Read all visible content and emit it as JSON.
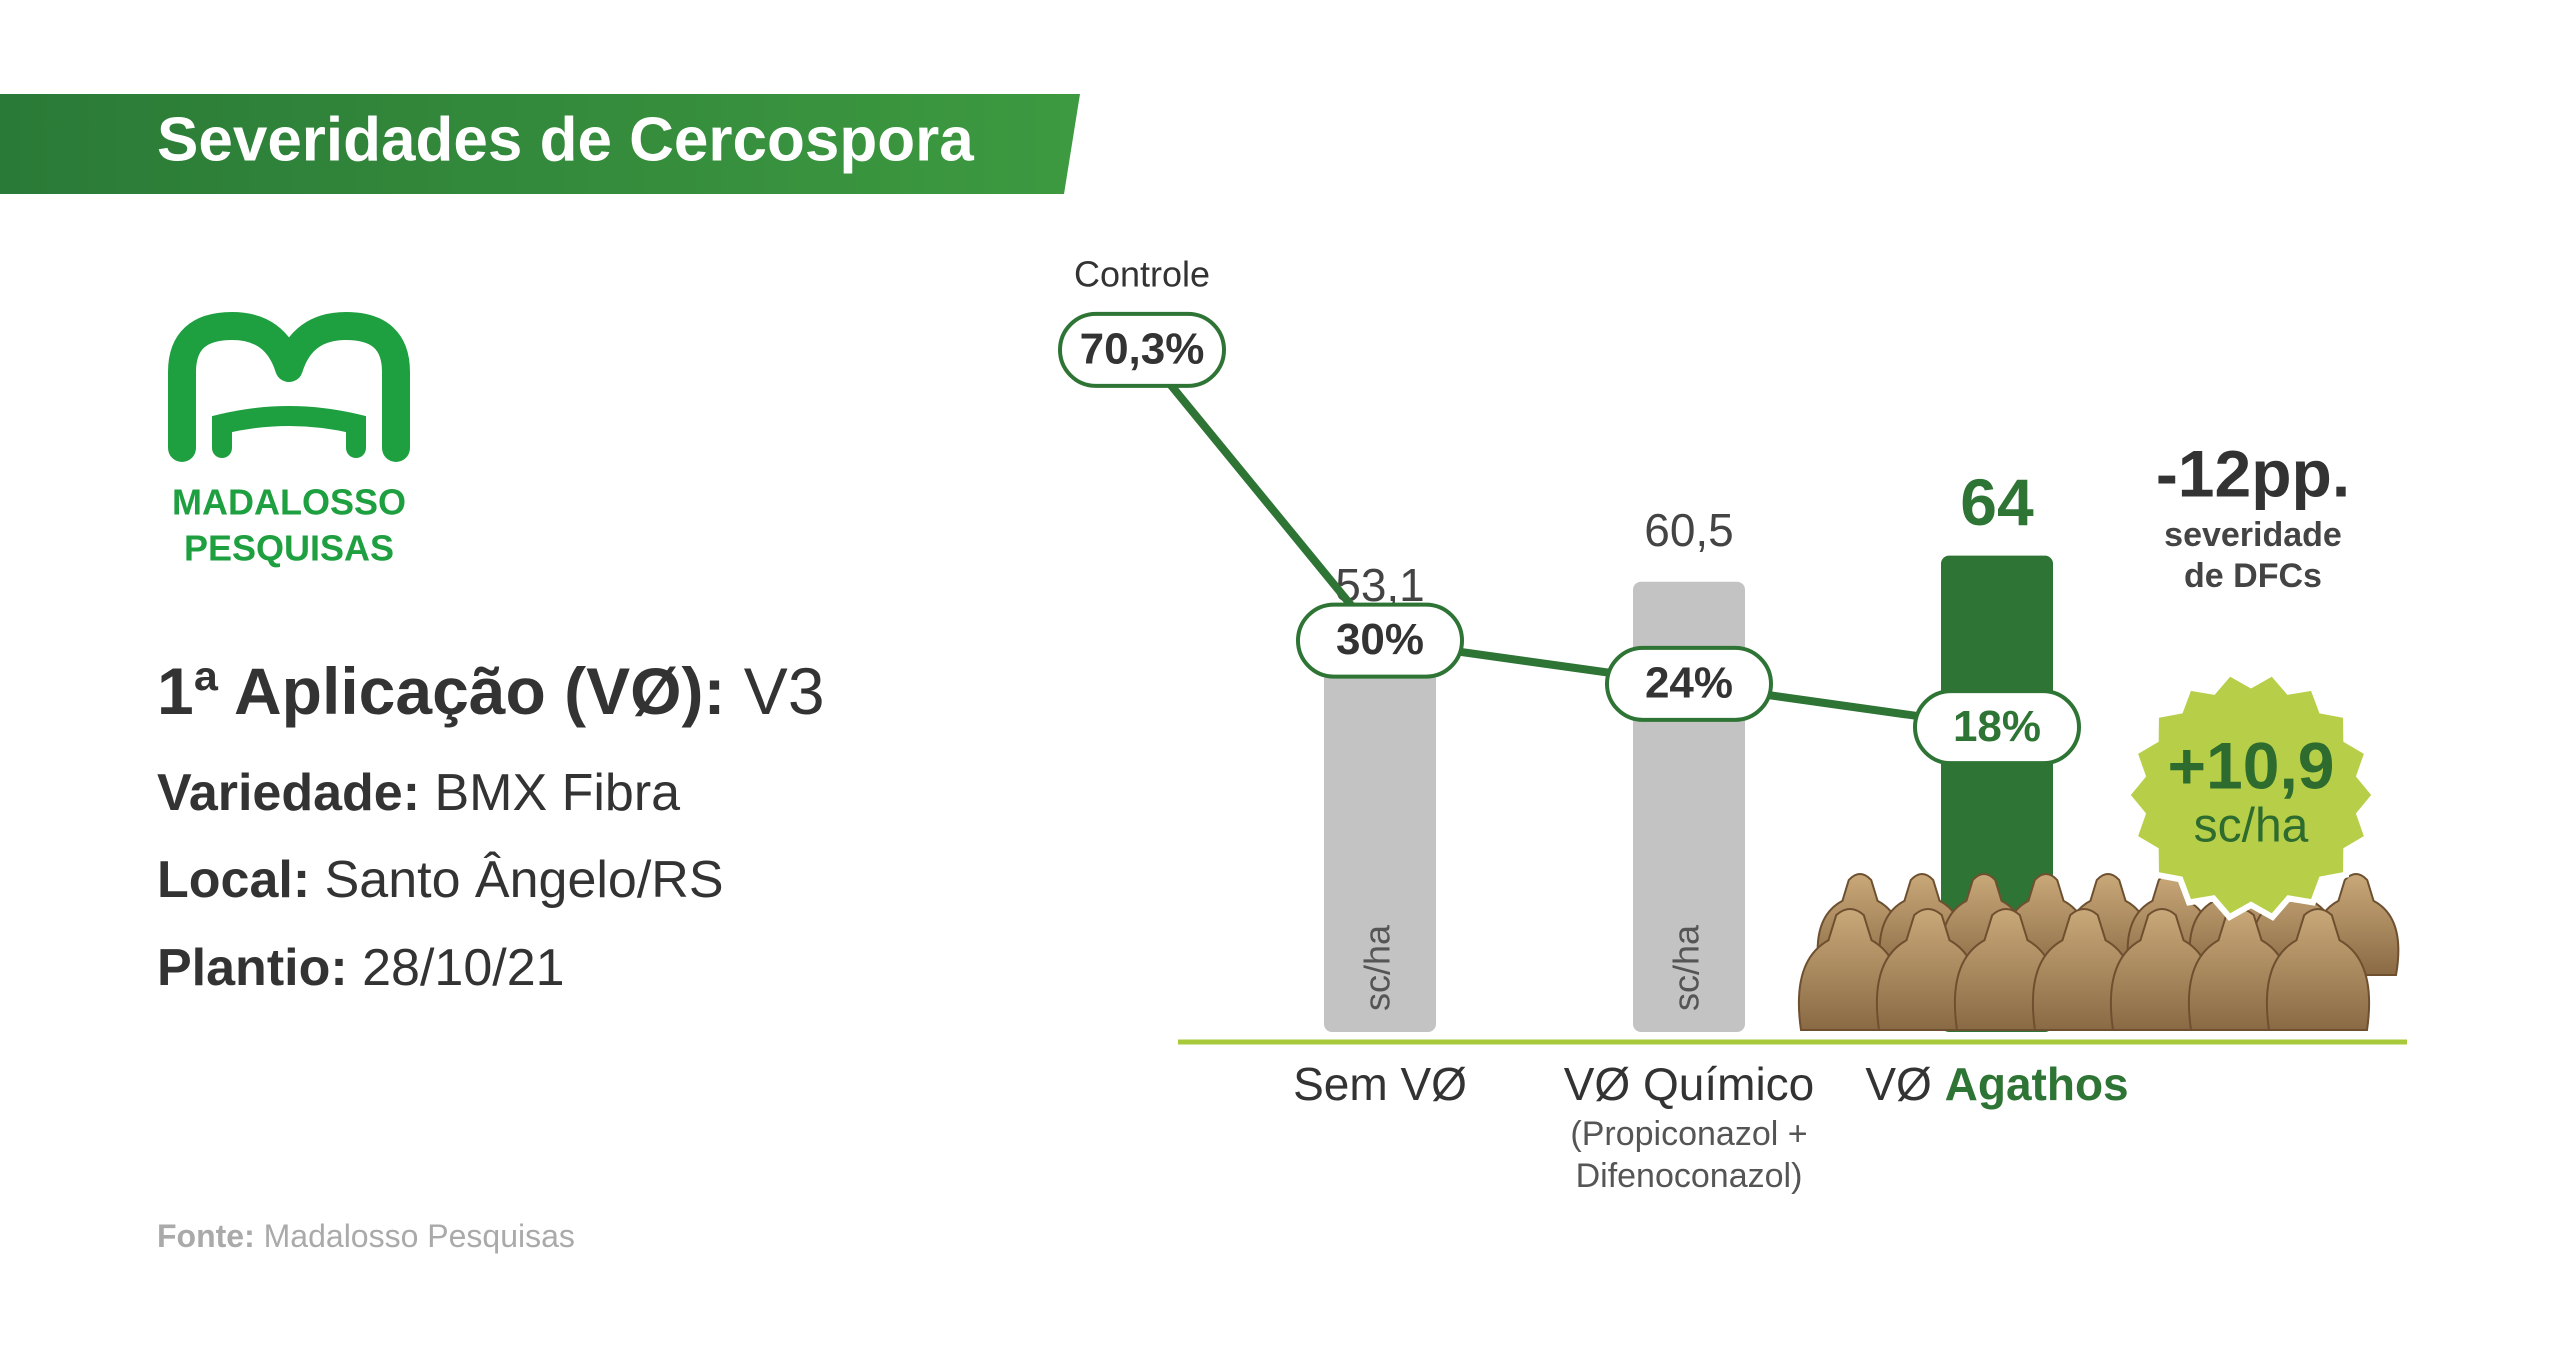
{
  "header": {
    "title": "Severidades de Cercospora"
  },
  "logo": {
    "lines": [
      "MADALOSSO",
      "PESQUISAS"
    ]
  },
  "info": [
    {
      "label": "1ª Aplicação (VØ):",
      "value": "V3"
    },
    {
      "label": "Variedade:",
      "value": "BMX Fibra"
    },
    {
      "label": "Local:",
      "value": "Santo Ângelo/RS"
    },
    {
      "label": "Plantio:",
      "value": "28/10/21"
    }
  ],
  "source": {
    "label": "Fonte:",
    "value": "Madalosso Pesquisas"
  },
  "chart_data": [
    {
      "type": "bar",
      "categories": [
        "Sem VØ",
        "VØ Químico",
        "VØ Agathos"
      ],
      "category_notes": [
        null,
        [
          "(Propiconazol +",
          "Difenoconazol)"
        ],
        null
      ],
      "values": [
        53.1,
        60.5,
        64
      ],
      "value_labels": [
        "53,1",
        "60,5",
        "64"
      ],
      "colors": [
        "#c3c3c3",
        "#c3c3c3",
        "#2e7434"
      ],
      "bar_unit_labels": [
        "sc/ha",
        "sc/ha",
        null
      ],
      "highlight_category": 2,
      "ylim": [
        0,
        70
      ]
    },
    {
      "type": "line",
      "categories": [
        "Controle",
        null,
        null,
        null
      ],
      "values": [
        70.3,
        30,
        24,
        18
      ],
      "value_labels": [
        "70,3%",
        "30%",
        "24%",
        "18%"
      ],
      "color": "#2e7434",
      "ylim": [
        0,
        75
      ]
    }
  ],
  "annotations": {
    "severity_change": "-12pp.",
    "severity_note": [
      "severidade",
      "de DFCs"
    ],
    "yield_gain": "+10,9",
    "yield_gain_unit": "sc/ha"
  }
}
